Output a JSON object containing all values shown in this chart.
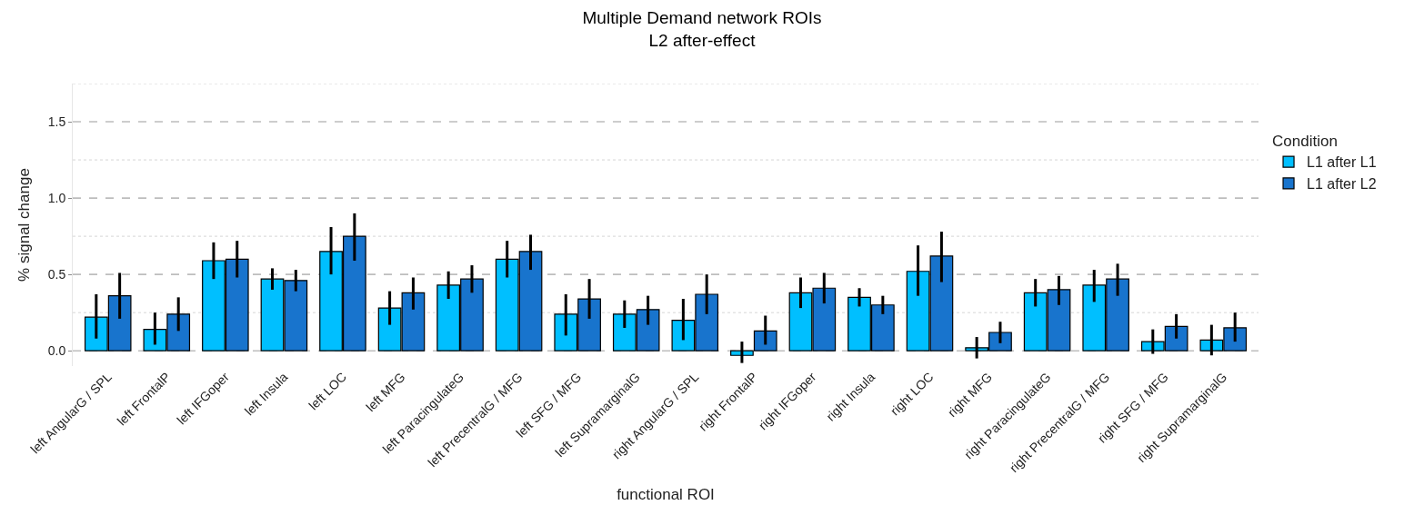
{
  "chart_data": {
    "type": "bar",
    "title": "Multiple Demand network ROIs\nL2 after-effect",
    "xlabel": "functional ROI",
    "ylabel": "% signal change",
    "legend_title": "Condition",
    "legend": "right",
    "categories": [
      "left AngularG / SPL",
      "left FrontalP",
      "left IFGoper",
      "left Insula",
      "left LOC",
      "left MFG",
      "left ParacingulateG",
      "left PrecentralG / MFG",
      "left SFG / MFG",
      "left SupramarginalG",
      "right AngularG / SPL",
      "right FrontalP",
      "right IFGoper",
      "right Insula",
      "right LOC",
      "right MFG",
      "right ParacingulateG",
      "right PrecentralG / MFG",
      "right SFG / MFG",
      "right SupramarginalG"
    ],
    "series": [
      {
        "name": "L1 after L1",
        "color": "#00bfff",
        "values": [
          0.22,
          0.14,
          0.59,
          0.47,
          0.65,
          0.28,
          0.43,
          0.6,
          0.24,
          0.24,
          0.2,
          -0.03,
          0.38,
          0.35,
          0.52,
          0.02,
          0.38,
          0.43,
          0.06,
          0.07
        ],
        "errors": [
          [
            0.08,
            0.37
          ],
          [
            0.04,
            0.25
          ],
          [
            0.47,
            0.71
          ],
          [
            0.4,
            0.54
          ],
          [
            0.5,
            0.81
          ],
          [
            0.17,
            0.39
          ],
          [
            0.34,
            0.52
          ],
          [
            0.48,
            0.72
          ],
          [
            0.1,
            0.37
          ],
          [
            0.15,
            0.33
          ],
          [
            0.07,
            0.34
          ],
          [
            -0.08,
            0.06
          ],
          [
            0.28,
            0.48
          ],
          [
            0.29,
            0.41
          ],
          [
            0.36,
            0.69
          ],
          [
            -0.05,
            0.09
          ],
          [
            0.29,
            0.47
          ],
          [
            0.32,
            0.53
          ],
          [
            -0.02,
            0.14
          ],
          [
            -0.03,
            0.17
          ]
        ]
      },
      {
        "name": "L1 after L2",
        "color": "#1874cd",
        "values": [
          0.36,
          0.24,
          0.6,
          0.46,
          0.75,
          0.38,
          0.47,
          0.65,
          0.34,
          0.27,
          0.37,
          0.13,
          0.41,
          0.3,
          0.62,
          0.12,
          0.4,
          0.47,
          0.16,
          0.15
        ],
        "errors": [
          [
            0.21,
            0.51
          ],
          [
            0.13,
            0.35
          ],
          [
            0.48,
            0.72
          ],
          [
            0.39,
            0.53
          ],
          [
            0.59,
            0.9
          ],
          [
            0.27,
            0.48
          ],
          [
            0.38,
            0.56
          ],
          [
            0.53,
            0.76
          ],
          [
            0.21,
            0.47
          ],
          [
            0.17,
            0.36
          ],
          [
            0.24,
            0.5
          ],
          [
            0.04,
            0.23
          ],
          [
            0.31,
            0.51
          ],
          [
            0.24,
            0.36
          ],
          [
            0.45,
            0.78
          ],
          [
            0.05,
            0.19
          ],
          [
            0.3,
            0.49
          ],
          [
            0.36,
            0.57
          ],
          [
            0.08,
            0.24
          ],
          [
            0.06,
            0.25
          ]
        ]
      }
    ],
    "ylim": [
      -0.1,
      1.75
    ],
    "yticks": [
      {
        "value": 0,
        "label": "0.0"
      },
      {
        "value": 0.25,
        "label": null
      },
      0.5,
      {
        "value": 0.75,
        "label": null
      },
      {
        "value": 1,
        "label": "1.0"
      },
      {
        "value": 1.25,
        "label": null
      },
      1.5,
      {
        "value": 1.75,
        "label": null
      }
    ],
    "grid": "y"
  }
}
